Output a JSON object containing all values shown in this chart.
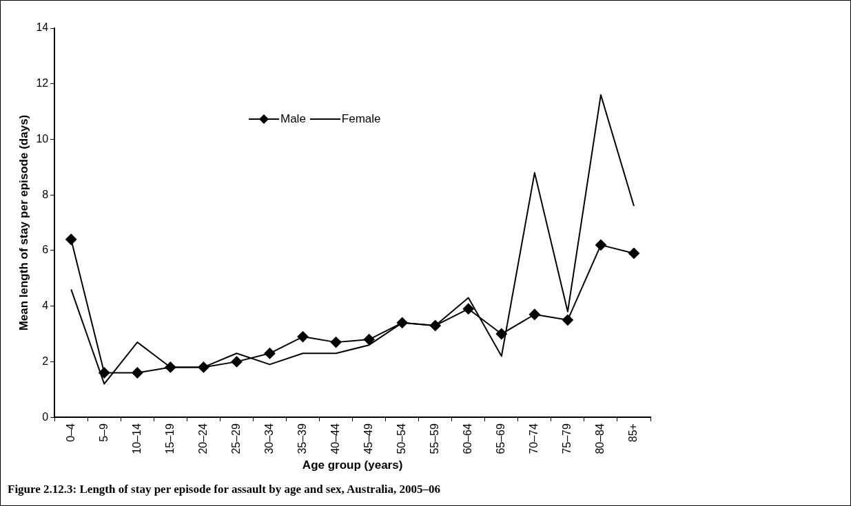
{
  "chart_data": {
    "type": "line",
    "title": "Figure 2.12.3: Length of stay per episode for assault by age and sex, Australia, 2005–06",
    "xlabel": "Age group (years)",
    "ylabel": "Mean length of stay per episode (days)",
    "categories": [
      "0–4",
      "5–9",
      "10–14",
      "15–19",
      "20–24",
      "25–29",
      "30–34",
      "35–39",
      "40–44",
      "45–49",
      "50–54",
      "55–59",
      "60–64",
      "65–69",
      "70–74",
      "75–79",
      "80–84",
      "85+"
    ],
    "series": [
      {
        "name": "Male",
        "color": "#000000",
        "marker": "diamond",
        "values": [
          6.4,
          1.6,
          1.6,
          1.8,
          1.8,
          2.0,
          2.3,
          2.9,
          2.7,
          2.8,
          3.4,
          3.3,
          3.9,
          3.0,
          3.7,
          3.5,
          6.2,
          5.9
        ]
      },
      {
        "name": "Female",
        "color": "#000000",
        "marker": "none",
        "values": [
          4.6,
          1.2,
          2.7,
          1.8,
          1.8,
          2.3,
          1.9,
          2.3,
          2.3,
          2.6,
          3.4,
          3.3,
          4.3,
          2.2,
          8.8,
          3.8,
          11.6,
          7.6
        ]
      }
    ],
    "ylim": [
      0,
      14
    ],
    "yticks": [
      0,
      2,
      4,
      6,
      8,
      10,
      12,
      14
    ],
    "grid": false,
    "legend": "top",
    "line_style": "solid"
  }
}
